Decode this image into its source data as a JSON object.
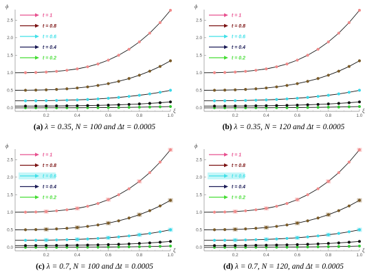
{
  "chart_data": [
    {
      "type": "line",
      "panel": "a",
      "caption_tag": "(a)",
      "caption_text": "λ = 0.35, N = 100 and Δt = 0.0005",
      "xlabel": "ξ",
      "ylabel": "ϕ",
      "xlim": [
        0,
        1.0
      ],
      "ylim": [
        -0.1,
        2.8
      ],
      "xticks": [
        "0.2",
        "0.4",
        "0.6",
        "0.8",
        "1.0"
      ],
      "yticks": [
        "0.0",
        "0.5",
        "1.0",
        "1.5",
        "2.0",
        "2.5"
      ],
      "legend_position": "top-left",
      "markers_highlighted": false,
      "series": [
        {
          "name": "t = 1",
          "color": "#e8508f",
          "marker": "#f08a8a",
          "values": [
            1.0,
            1.002,
            1.008,
            1.02,
            1.04,
            1.07,
            1.11,
            1.17,
            1.25,
            1.36,
            1.5,
            1.67,
            1.88,
            2.13,
            2.43,
            2.78
          ]
        },
        {
          "name": "t = 0.8",
          "color": "#7a1010",
          "marker": "#7a5a26",
          "values": [
            0.5,
            0.501,
            0.505,
            0.512,
            0.524,
            0.541,
            0.565,
            0.597,
            0.638,
            0.69,
            0.755,
            0.835,
            0.93,
            1.045,
            1.18,
            1.34
          ]
        },
        {
          "name": "t = 0.6",
          "color": "#3fe0e8",
          "marker": "#37d8e8",
          "values": [
            0.2,
            0.2,
            0.202,
            0.205,
            0.21,
            0.217,
            0.226,
            0.238,
            0.254,
            0.273,
            0.297,
            0.325,
            0.358,
            0.397,
            0.443,
            0.5
          ]
        },
        {
          "name": "t = 0.4",
          "color": "#1a1a55",
          "marker": "#111111",
          "values": [
            0.05,
            0.05,
            0.051,
            0.052,
            0.054,
            0.057,
            0.06,
            0.064,
            0.07,
            0.077,
            0.086,
            0.097,
            0.11,
            0.126,
            0.145,
            0.168
          ]
        },
        {
          "name": "t = 0.2",
          "color": "#44dd33",
          "marker": "#33cc33",
          "values": [
            0.0,
            0.0,
            0.0,
            0.001,
            0.001,
            0.002,
            0.003,
            0.004,
            0.006,
            0.008,
            0.011,
            0.014,
            0.018,
            0.023,
            0.029,
            0.036
          ]
        }
      ]
    },
    {
      "type": "line",
      "panel": "b",
      "caption_tag": "(b)",
      "caption_text": "λ = 0.35, N = 120 and Δt = 0.0005",
      "xlabel": "ξ",
      "ylabel": "ϕ",
      "xlim": [
        0,
        1.0
      ],
      "ylim": [
        -0.1,
        2.8
      ],
      "xticks": [
        "0.2",
        "0.4",
        "0.6",
        "0.8",
        "1.0"
      ],
      "yticks": [
        "0.0",
        "0.5",
        "1.0",
        "1.5",
        "2.0",
        "2.5"
      ],
      "legend_position": "top-left",
      "markers_highlighted": false,
      "series": [
        {
          "name": "t = 1",
          "color": "#e8508f",
          "marker": "#f08a8a",
          "values": [
            1.0,
            1.002,
            1.008,
            1.02,
            1.04,
            1.07,
            1.11,
            1.17,
            1.25,
            1.36,
            1.5,
            1.67,
            1.88,
            2.13,
            2.43,
            2.78
          ]
        },
        {
          "name": "t = 0.8",
          "color": "#7a1010",
          "marker": "#7a5a26",
          "values": [
            0.5,
            0.501,
            0.505,
            0.512,
            0.524,
            0.541,
            0.565,
            0.597,
            0.638,
            0.69,
            0.755,
            0.835,
            0.93,
            1.045,
            1.18,
            1.34
          ]
        },
        {
          "name": "t = 0.6",
          "color": "#3fe0e8",
          "marker": "#37d8e8",
          "values": [
            0.2,
            0.2,
            0.202,
            0.205,
            0.21,
            0.217,
            0.226,
            0.238,
            0.254,
            0.273,
            0.297,
            0.325,
            0.358,
            0.397,
            0.443,
            0.5
          ]
        },
        {
          "name": "t = 0.4",
          "color": "#1a1a55",
          "marker": "#111111",
          "values": [
            0.05,
            0.05,
            0.051,
            0.052,
            0.054,
            0.057,
            0.06,
            0.064,
            0.07,
            0.077,
            0.086,
            0.097,
            0.11,
            0.126,
            0.145,
            0.168
          ]
        },
        {
          "name": "t = 0.2",
          "color": "#44dd33",
          "marker": "#33cc33",
          "values": [
            0.0,
            0.0,
            0.0,
            0.001,
            0.001,
            0.002,
            0.003,
            0.004,
            0.006,
            0.008,
            0.011,
            0.014,
            0.018,
            0.023,
            0.029,
            0.036
          ]
        }
      ]
    },
    {
      "type": "line",
      "panel": "c",
      "caption_tag": "(c)",
      "caption_text": "λ = 0.7, N = 100 and Δt = 0.0005",
      "xlabel": "ξ",
      "ylabel": "ϕ",
      "xlim": [
        0,
        1.0
      ],
      "ylim": [
        -0.1,
        2.8
      ],
      "xticks": [
        "0.2",
        "0.4",
        "0.6",
        "0.8",
        "1.0"
      ],
      "yticks": [
        "0.0",
        "0.5",
        "1.0",
        "1.5",
        "2.0",
        "2.5"
      ],
      "legend_position": "top-left",
      "markers_highlighted": true,
      "series": [
        {
          "name": "t = 1",
          "color": "#e8508f",
          "marker": "#f08a8a",
          "values": [
            1.0,
            1.002,
            1.008,
            1.02,
            1.04,
            1.07,
            1.11,
            1.17,
            1.25,
            1.36,
            1.5,
            1.67,
            1.88,
            2.13,
            2.43,
            2.78
          ]
        },
        {
          "name": "t = 0.8",
          "color": "#7a1010",
          "marker": "#7a5a26",
          "values": [
            0.5,
            0.501,
            0.505,
            0.512,
            0.524,
            0.541,
            0.565,
            0.597,
            0.638,
            0.69,
            0.755,
            0.835,
            0.93,
            1.045,
            1.18,
            1.34
          ]
        },
        {
          "name": "t = 0.6",
          "color": "#3fe0e8",
          "marker": "#37d8e8",
          "values": [
            0.2,
            0.2,
            0.202,
            0.205,
            0.21,
            0.217,
            0.226,
            0.238,
            0.254,
            0.273,
            0.297,
            0.325,
            0.358,
            0.397,
            0.443,
            0.5
          ]
        },
        {
          "name": "t = 0.4",
          "color": "#1a1a55",
          "marker": "#111111",
          "values": [
            0.05,
            0.05,
            0.051,
            0.052,
            0.054,
            0.057,
            0.06,
            0.064,
            0.07,
            0.077,
            0.086,
            0.097,
            0.11,
            0.126,
            0.145,
            0.168
          ]
        },
        {
          "name": "t = 0.2",
          "color": "#44dd33",
          "marker": "#33cc33",
          "values": [
            0.0,
            0.0,
            0.0,
            0.001,
            0.001,
            0.002,
            0.003,
            0.004,
            0.006,
            0.008,
            0.011,
            0.014,
            0.018,
            0.023,
            0.029,
            0.036
          ]
        }
      ]
    },
    {
      "type": "line",
      "panel": "d",
      "caption_tag": "(d)",
      "caption_text": "λ = 0.7, N = 120, and Δt = 0.0005",
      "xlabel": "ξ",
      "ylabel": "ϕ",
      "xlim": [
        0,
        1.0
      ],
      "ylim": [
        -0.1,
        2.8
      ],
      "xticks": [
        "0.2",
        "0.4",
        "0.6",
        "0.8",
        "1.0"
      ],
      "yticks": [
        "0.0",
        "0.5",
        "1.0",
        "1.5",
        "2.0",
        "2.5"
      ],
      "legend_position": "top-left",
      "markers_highlighted": true,
      "series": [
        {
          "name": "t = 1",
          "color": "#e8508f",
          "marker": "#f08a8a",
          "values": [
            1.0,
            1.002,
            1.008,
            1.02,
            1.04,
            1.07,
            1.11,
            1.17,
            1.25,
            1.36,
            1.5,
            1.67,
            1.88,
            2.13,
            2.43,
            2.78
          ]
        },
        {
          "name": "t = 0.8",
          "color": "#7a1010",
          "marker": "#7a5a26",
          "values": [
            0.5,
            0.501,
            0.505,
            0.512,
            0.524,
            0.541,
            0.565,
            0.597,
            0.638,
            0.69,
            0.755,
            0.835,
            0.93,
            1.045,
            1.18,
            1.34
          ]
        },
        {
          "name": "t = 0.6",
          "color": "#3fe0e8",
          "marker": "#37d8e8",
          "values": [
            0.2,
            0.2,
            0.202,
            0.205,
            0.21,
            0.217,
            0.226,
            0.238,
            0.254,
            0.273,
            0.297,
            0.325,
            0.358,
            0.397,
            0.443,
            0.5
          ]
        },
        {
          "name": "t = 0.4",
          "color": "#1a1a55",
          "marker": "#111111",
          "values": [
            0.05,
            0.05,
            0.051,
            0.052,
            0.054,
            0.057,
            0.06,
            0.064,
            0.07,
            0.077,
            0.086,
            0.097,
            0.11,
            0.126,
            0.145,
            0.168
          ]
        },
        {
          "name": "t = 0.2",
          "color": "#44dd33",
          "marker": "#33cc33",
          "values": [
            0.0,
            0.0,
            0.0,
            0.001,
            0.001,
            0.002,
            0.003,
            0.004,
            0.006,
            0.008,
            0.011,
            0.014,
            0.018,
            0.023,
            0.029,
            0.036
          ]
        }
      ]
    }
  ]
}
